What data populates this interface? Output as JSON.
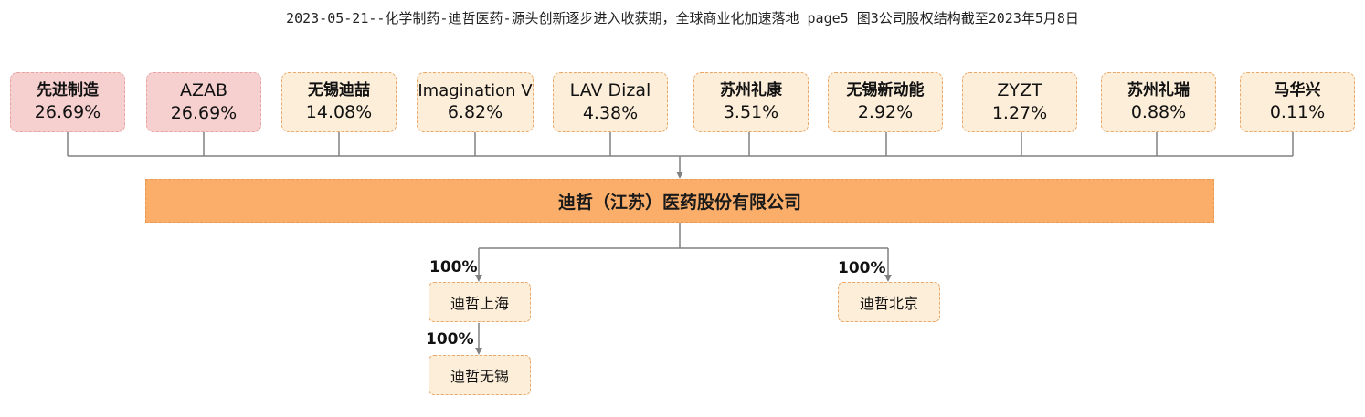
{
  "title": "2023-05-21--化学制药-迪哲医药-源头创新逐步进入收获期，全球商业化加速落地_page5_图3公司股权结构截至2023年5月8日",
  "shareholders": [
    {
      "name": "先进制造",
      "pct": "26.69%"
    },
    {
      "name": "AZAB",
      "pct": "26.69%"
    },
    {
      "name": "无锡迪喆",
      "pct": "14.08%"
    },
    {
      "name": "Imagination V",
      "pct": "6.82%"
    },
    {
      "name": "LAV Dizal",
      "pct": "4.38%"
    },
    {
      "name": "苏州礼康",
      "pct": "3.51%"
    },
    {
      "name": "无锡新动能",
      "pct": "2.92%"
    },
    {
      "name": "ZYZT",
      "pct": "1.27%"
    },
    {
      "name": "苏州礼瑞",
      "pct": "0.88%"
    },
    {
      "name": "马华兴",
      "pct": "0.11%"
    }
  ],
  "company": {
    "name": "迪哲（江苏）医药股份有限公司"
  },
  "subsidiaries": [
    {
      "name": "迪哲上海",
      "pct": "100%"
    },
    {
      "name": "迪哲北京",
      "pct": "100%"
    },
    {
      "name": "迪哲无锡",
      "pct": "100%"
    }
  ],
  "colors": {
    "major_holder": "#f6cfcf",
    "holder": "#fdeed9",
    "company": "#fbae6a",
    "line": "#808080"
  }
}
